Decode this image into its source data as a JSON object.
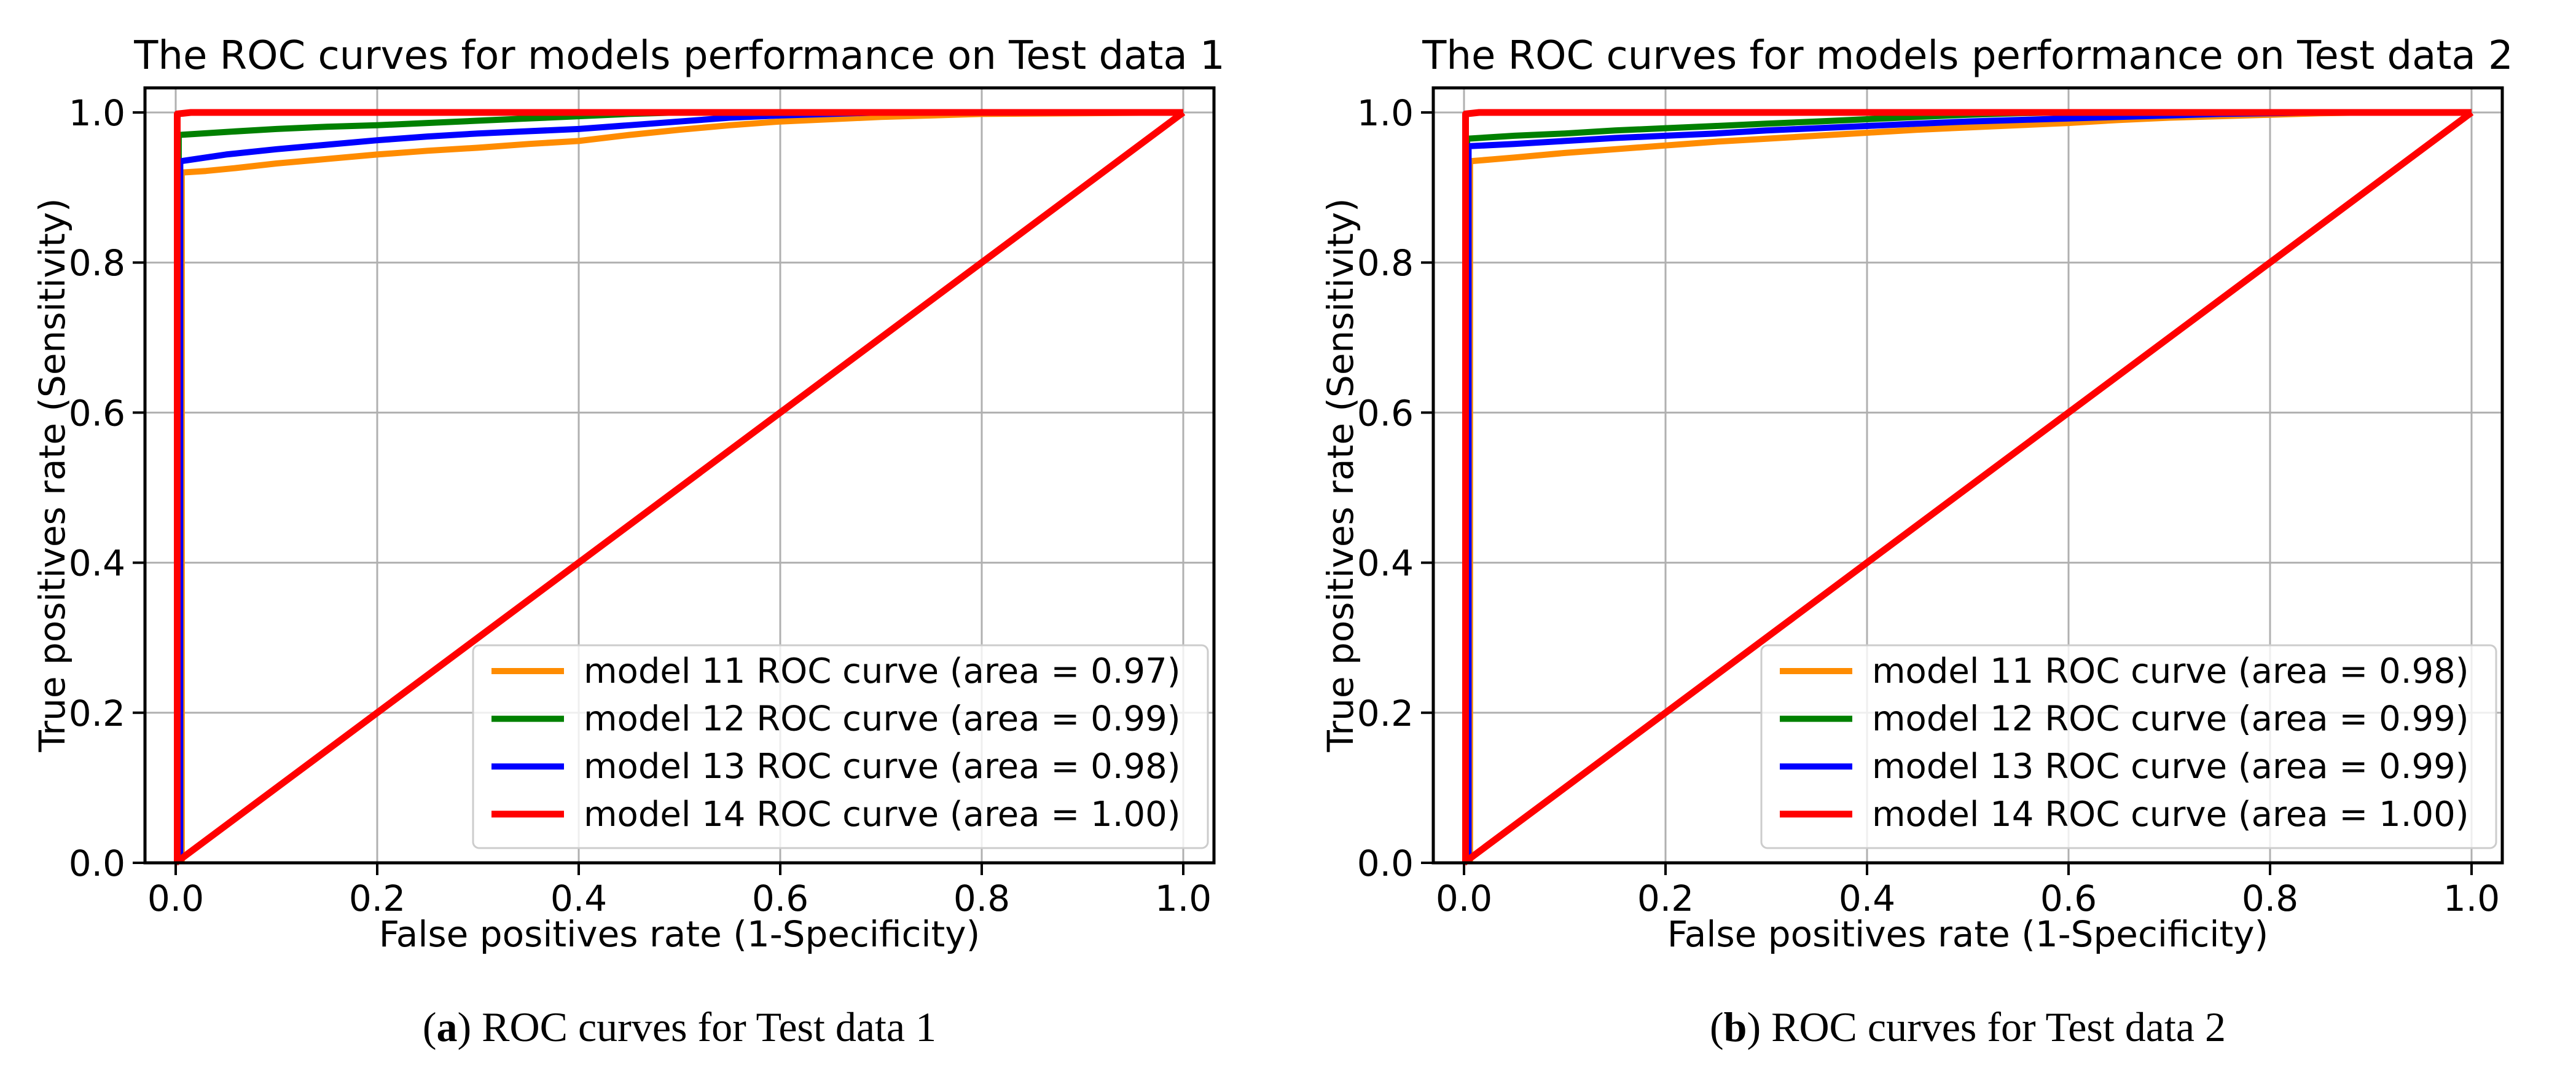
{
  "page": {
    "background": "#ffffff"
  },
  "colors": {
    "model11": "#FF8C00",
    "model12": "#008000",
    "model13": "#0000FF",
    "model14": "#FF0000",
    "chance_line": "#FF0000",
    "grid": "#B0B0B0",
    "spine": "#000000",
    "legend_border": "#CCCCCC"
  },
  "chart_data": [
    {
      "type": "line",
      "title": "The ROC curves for models performance on Test data 1",
      "xlabel": "False positives rate (1-Specificity)",
      "ylabel": "True positives rate (Sensitivity)",
      "xticks": [
        0.0,
        0.2,
        0.4,
        0.6,
        0.8,
        1.0
      ],
      "yticks": [
        0.0,
        0.2,
        0.4,
        0.6,
        0.8,
        1.0
      ],
      "xtick_labels": [
        "0.0",
        "0.2",
        "0.4",
        "0.6",
        "0.8",
        "1.0"
      ],
      "ytick_labels": [
        "0.0",
        "0.2",
        "0.4",
        "0.6",
        "0.8",
        "1.0"
      ],
      "xlim": [
        -0.03,
        1.03
      ],
      "ylim": [
        0.0,
        1.033
      ],
      "grid": true,
      "legend_position": "lower right",
      "series": [
        {
          "name": "model 11 ROC curve (area = 0.97)",
          "data_name": "roc-curve-model-11",
          "color": "#FF8C00",
          "width": 10,
          "legend": true,
          "points": [
            [
              0.006,
              0
            ],
            [
              0.006,
              0.92
            ],
            [
              0.03,
              0.922
            ],
            [
              0.06,
              0.926
            ],
            [
              0.1,
              0.932
            ],
            [
              0.15,
              0.938
            ],
            [
              0.2,
              0.944
            ],
            [
              0.25,
              0.949
            ],
            [
              0.3,
              0.953
            ],
            [
              0.35,
              0.958
            ],
            [
              0.4,
              0.962
            ],
            [
              0.45,
              0.97
            ],
            [
              0.5,
              0.977
            ],
            [
              0.55,
              0.983
            ],
            [
              0.6,
              0.988
            ],
            [
              0.65,
              0.991
            ],
            [
              0.7,
              0.994
            ],
            [
              0.75,
              0.996
            ],
            [
              0.8,
              0.998
            ],
            [
              0.9,
              0.999
            ],
            [
              1.0,
              1.0
            ]
          ]
        },
        {
          "name": "model 12 ROC curve (area = 0.99)",
          "data_name": "roc-curve-model-12",
          "color": "#008000",
          "width": 10,
          "legend": true,
          "points": [
            [
              0.003,
              0
            ],
            [
              0.003,
              0.97
            ],
            [
              0.05,
              0.974
            ],
            [
              0.1,
              0.978
            ],
            [
              0.15,
              0.981
            ],
            [
              0.2,
              0.983
            ],
            [
              0.25,
              0.986
            ],
            [
              0.3,
              0.989
            ],
            [
              0.35,
              0.992
            ],
            [
              0.4,
              0.995
            ],
            [
              0.45,
              0.998
            ],
            [
              0.5,
              1.0
            ],
            [
              1.0,
              1.0
            ]
          ]
        },
        {
          "name": "model 13 ROC curve (area = 0.98)",
          "data_name": "roc-curve-model-13",
          "color": "#0000FF",
          "width": 10,
          "legend": true,
          "points": [
            [
              0.0045,
              0
            ],
            [
              0.0045,
              0.935
            ],
            [
              0.05,
              0.944
            ],
            [
              0.1,
              0.951
            ],
            [
              0.15,
              0.957
            ],
            [
              0.2,
              0.963
            ],
            [
              0.25,
              0.968
            ],
            [
              0.3,
              0.972
            ],
            [
              0.35,
              0.975
            ],
            [
              0.4,
              0.978
            ],
            [
              0.45,
              0.983
            ],
            [
              0.5,
              0.988
            ],
            [
              0.55,
              0.993
            ],
            [
              0.6,
              0.996
            ],
            [
              0.65,
              0.998
            ],
            [
              0.7,
              1.0
            ],
            [
              1.0,
              1.0
            ]
          ]
        },
        {
          "name": "model 14 ROC curve (area = 1.00)",
          "data_name": "roc-curve-model-14",
          "color": "#FF0000",
          "width": 11,
          "legend": true,
          "points": [
            [
              0.0015,
              0
            ],
            [
              0.0015,
              0.998
            ],
            [
              0.015,
              1.0
            ],
            [
              1.0,
              1.0
            ]
          ]
        },
        {
          "name": "chance diagonal",
          "data_name": "chance-diagonal-line",
          "color": "#FF0000",
          "width": 11,
          "legend": false,
          "points": [
            [
              0,
              0
            ],
            [
              1,
              1
            ]
          ]
        }
      ]
    },
    {
      "type": "line",
      "title": "The ROC curves for models performance on Test data 2",
      "xlabel": "False positives rate (1-Specificity)",
      "ylabel": "True positives rate (Sensitivity)",
      "xticks": [
        0.0,
        0.2,
        0.4,
        0.6,
        0.8,
        1.0
      ],
      "yticks": [
        0.0,
        0.2,
        0.4,
        0.6,
        0.8,
        1.0
      ],
      "xtick_labels": [
        "0.0",
        "0.2",
        "0.4",
        "0.6",
        "0.8",
        "1.0"
      ],
      "ytick_labels": [
        "0.0",
        "0.2",
        "0.4",
        "0.6",
        "0.8",
        "1.0"
      ],
      "xlim": [
        -0.03,
        1.03
      ],
      "ylim": [
        0.0,
        1.033
      ],
      "grid": true,
      "legend_position": "lower right",
      "series": [
        {
          "name": "model 11 ROC curve (area = 0.98)",
          "data_name": "roc-curve-model-11",
          "color": "#FF8C00",
          "width": 10,
          "legend": true,
          "points": [
            [
              0.006,
              0
            ],
            [
              0.006,
              0.935
            ],
            [
              0.05,
              0.94
            ],
            [
              0.1,
              0.946
            ],
            [
              0.15,
              0.951
            ],
            [
              0.2,
              0.956
            ],
            [
              0.25,
              0.961
            ],
            [
              0.3,
              0.965
            ],
            [
              0.35,
              0.969
            ],
            [
              0.4,
              0.973
            ],
            [
              0.45,
              0.977
            ],
            [
              0.5,
              0.98
            ],
            [
              0.55,
              0.983
            ],
            [
              0.6,
              0.986
            ],
            [
              0.65,
              0.99
            ],
            [
              0.7,
              0.993
            ],
            [
              0.75,
              0.995
            ],
            [
              0.8,
              0.997
            ],
            [
              0.85,
              0.999
            ],
            [
              0.9,
              1.0
            ],
            [
              1.0,
              1.0
            ]
          ]
        },
        {
          "name": "model 12 ROC curve (area = 0.99)",
          "data_name": "roc-curve-model-12",
          "color": "#008000",
          "width": 10,
          "legend": true,
          "points": [
            [
              0.003,
              0
            ],
            [
              0.003,
              0.965
            ],
            [
              0.05,
              0.969
            ],
            [
              0.1,
              0.972
            ],
            [
              0.15,
              0.976
            ],
            [
              0.2,
              0.979
            ],
            [
              0.25,
              0.982
            ],
            [
              0.3,
              0.985
            ],
            [
              0.35,
              0.988
            ],
            [
              0.4,
              0.991
            ],
            [
              0.45,
              0.994
            ],
            [
              0.5,
              0.997
            ],
            [
              0.55,
              0.999
            ],
            [
              0.6,
              1.0
            ],
            [
              1.0,
              1.0
            ]
          ]
        },
        {
          "name": "model 13 ROC curve (area = 0.99)",
          "data_name": "roc-curve-model-13",
          "color": "#0000FF",
          "width": 10,
          "legend": true,
          "points": [
            [
              0.0045,
              0
            ],
            [
              0.0045,
              0.955
            ],
            [
              0.05,
              0.958
            ],
            [
              0.1,
              0.962
            ],
            [
              0.15,
              0.966
            ],
            [
              0.2,
              0.969
            ],
            [
              0.25,
              0.972
            ],
            [
              0.3,
              0.976
            ],
            [
              0.35,
              0.979
            ],
            [
              0.4,
              0.982
            ],
            [
              0.45,
              0.985
            ],
            [
              0.5,
              0.988
            ],
            [
              0.55,
              0.99
            ],
            [
              0.6,
              0.992
            ],
            [
              0.65,
              0.994
            ],
            [
              0.7,
              0.996
            ],
            [
              0.75,
              0.998
            ],
            [
              0.8,
              0.999
            ],
            [
              0.85,
              1.0
            ],
            [
              1.0,
              1.0
            ]
          ]
        },
        {
          "name": "model 14 ROC curve (area = 1.00)",
          "data_name": "roc-curve-model-14",
          "color": "#FF0000",
          "width": 11,
          "legend": true,
          "points": [
            [
              0.0015,
              0
            ],
            [
              0.0015,
              0.998
            ],
            [
              0.015,
              1.0
            ],
            [
              1.0,
              1.0
            ]
          ]
        },
        {
          "name": "chance diagonal",
          "data_name": "chance-diagonal-line",
          "color": "#FF0000",
          "width": 11,
          "legend": false,
          "points": [
            [
              0,
              0
            ],
            [
              1,
              1
            ]
          ]
        }
      ]
    }
  ],
  "captions": [
    {
      "open": "(",
      "label": "a",
      "rest": ") ROC curves for Test data 1"
    },
    {
      "open": "(",
      "label": "b",
      "rest": ") ROC curves for Test data 2"
    }
  ]
}
